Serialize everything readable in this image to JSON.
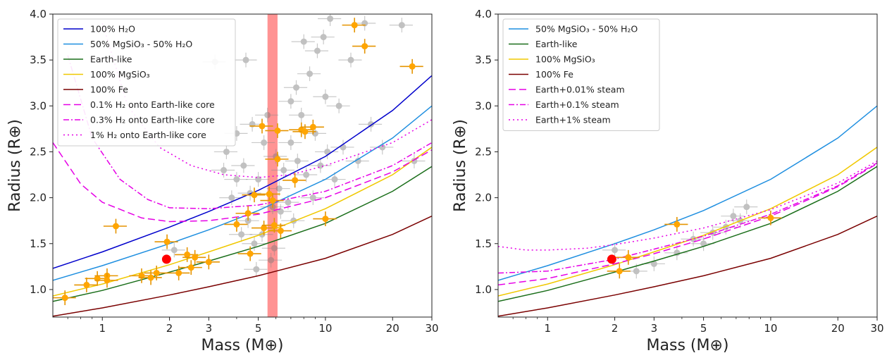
{
  "chart_data": [
    {
      "type": "scatter",
      "panel": "left",
      "xlabel": "Mass (M⊕)",
      "ylabel": "Radius (R⊕)",
      "xscale": "log",
      "xlim": [
        0.6,
        30
      ],
      "ylim": [
        0.7,
        4.0
      ],
      "xticks": [
        1,
        2,
        3,
        5,
        10,
        20,
        30
      ],
      "yticks": [
        1.0,
        1.5,
        2.0,
        2.5,
        3.0,
        3.5,
        4.0
      ],
      "legend_position": "top-left",
      "band": {
        "x_range": [
          5.5,
          6.1
        ],
        "color": "#ff8080"
      },
      "series": [
        {
          "name": "100% H₂O",
          "style": "solid",
          "color": "#0000cc",
          "x": [
            0.6,
            1,
            2,
            3,
            5,
            10,
            20,
            30
          ],
          "y": [
            1.23,
            1.41,
            1.68,
            1.85,
            2.08,
            2.45,
            2.95,
            3.33
          ]
        },
        {
          "name": "50% MgSiO₃ - 50% H₂O",
          "style": "solid",
          "color": "#1f8fe0",
          "x": [
            0.6,
            1,
            2,
            3,
            5,
            10,
            20,
            30
          ],
          "y": [
            1.1,
            1.26,
            1.5,
            1.65,
            1.86,
            2.2,
            2.65,
            3.0
          ]
        },
        {
          "name": "Earth-like",
          "style": "solid",
          "color": "#1a6e1a",
          "x": [
            0.6,
            1,
            2,
            3,
            5,
            10,
            20,
            30
          ],
          "y": [
            0.87,
            0.99,
            1.19,
            1.31,
            1.47,
            1.72,
            2.07,
            2.34
          ]
        },
        {
          "name": "100% MgSiO₃",
          "style": "solid",
          "color": "#f0c800",
          "x": [
            0.6,
            1,
            2,
            3,
            5,
            10,
            20,
            30
          ],
          "y": [
            0.93,
            1.06,
            1.27,
            1.41,
            1.59,
            1.88,
            2.25,
            2.55
          ]
        },
        {
          "name": "100% Fe",
          "style": "solid",
          "color": "#7a0000",
          "x": [
            0.6,
            1,
            2,
            3,
            5,
            10,
            20,
            30
          ],
          "y": [
            0.71,
            0.8,
            0.94,
            1.03,
            1.15,
            1.34,
            1.6,
            1.8
          ]
        },
        {
          "name": "0.1% H₂ onto Earth-like core",
          "style": "dashed",
          "color": "#e600e6",
          "x": [
            0.6,
            0.8,
            1,
            1.5,
            2,
            3,
            5,
            10,
            20,
            30
          ],
          "y": [
            2.6,
            2.15,
            1.95,
            1.78,
            1.74,
            1.75,
            1.82,
            2.0,
            2.28,
            2.52
          ]
        },
        {
          "name": "0.3% H₂ onto Earth-like core",
          "style": "dashdot",
          "color": "#e600e6",
          "x": [
            0.7,
            0.9,
            1.2,
            1.6,
            2,
            3,
            5,
            10,
            20,
            30
          ],
          "y": [
            3.55,
            2.65,
            2.2,
            1.98,
            1.89,
            1.88,
            1.92,
            2.07,
            2.35,
            2.6
          ]
        },
        {
          "name": "1% H₂ onto Earth-like core",
          "style": "dotted",
          "color": "#e600e6",
          "x": [
            1.0,
            1.3,
            1.8,
            2.5,
            3.5,
            5,
            7,
            10,
            20,
            30
          ],
          "y": [
            3.9,
            3.0,
            2.55,
            2.35,
            2.25,
            2.22,
            2.25,
            2.35,
            2.6,
            2.85
          ]
        }
      ],
      "points_gray": [
        {
          "x": 2.1,
          "y": 1.43
        },
        {
          "x": 3.0,
          "y": 1.3
        },
        {
          "x": 3.5,
          "y": 2.3
        },
        {
          "x": 3.6,
          "y": 2.5
        },
        {
          "x": 3.8,
          "y": 2.0
        },
        {
          "x": 4.0,
          "y": 2.2
        },
        {
          "x": 4.0,
          "y": 2.7
        },
        {
          "x": 4.2,
          "y": 1.6
        },
        {
          "x": 4.3,
          "y": 2.35
        },
        {
          "x": 4.5,
          "y": 1.75
        },
        {
          "x": 4.6,
          "y": 2.05
        },
        {
          "x": 4.7,
          "y": 2.8
        },
        {
          "x": 4.8,
          "y": 1.5
        },
        {
          "x": 5.0,
          "y": 2.2
        },
        {
          "x": 5.2,
          "y": 1.6
        },
        {
          "x": 5.3,
          "y": 2.6
        },
        {
          "x": 5.5,
          "y": 2.9
        },
        {
          "x": 5.7,
          "y": 1.32
        },
        {
          "x": 5.8,
          "y": 1.9
        },
        {
          "x": 6.0,
          "y": 2.45
        },
        {
          "x": 6.2,
          "y": 2.1
        },
        {
          "x": 6.3,
          "y": 1.85
        },
        {
          "x": 6.5,
          "y": 2.3
        },
        {
          "x": 6.8,
          "y": 1.95
        },
        {
          "x": 7.0,
          "y": 2.6
        },
        {
          "x": 7.0,
          "y": 3.05
        },
        {
          "x": 7.2,
          "y": 1.75
        },
        {
          "x": 7.4,
          "y": 3.2
        },
        {
          "x": 7.5,
          "y": 2.4
        },
        {
          "x": 7.8,
          "y": 2.9
        },
        {
          "x": 8.0,
          "y": 3.7
        },
        {
          "x": 8.2,
          "y": 2.25
        },
        {
          "x": 8.5,
          "y": 3.35
        },
        {
          "x": 8.8,
          "y": 2.0
        },
        {
          "x": 9.0,
          "y": 2.7
        },
        {
          "x": 9.2,
          "y": 3.6
        },
        {
          "x": 9.5,
          "y": 2.35
        },
        {
          "x": 9.8,
          "y": 3.75
        },
        {
          "x": 10.0,
          "y": 3.1
        },
        {
          "x": 10.2,
          "y": 2.5
        },
        {
          "x": 10.5,
          "y": 3.95
        },
        {
          "x": 11.0,
          "y": 2.2
        },
        {
          "x": 11.5,
          "y": 3.0
        },
        {
          "x": 12.0,
          "y": 2.55
        },
        {
          "x": 13.0,
          "y": 3.5
        },
        {
          "x": 14.0,
          "y": 2.4
        },
        {
          "x": 15.0,
          "y": 3.9
        },
        {
          "x": 16.0,
          "y": 2.8
        },
        {
          "x": 18.0,
          "y": 2.55
        },
        {
          "x": 22.0,
          "y": 3.88
        },
        {
          "x": 25.0,
          "y": 2.4
        },
        {
          "x": 4.4,
          "y": 3.5
        },
        {
          "x": 3.2,
          "y": 3.48
        },
        {
          "x": 5.9,
          "y": 1.45
        },
        {
          "x": 4.9,
          "y": 1.22
        }
      ],
      "points_orange": [
        {
          "x": 0.68,
          "y": 0.91
        },
        {
          "x": 0.85,
          "y": 1.05
        },
        {
          "x": 0.95,
          "y": 1.12
        },
        {
          "x": 1.05,
          "y": 1.15
        },
        {
          "x": 1.05,
          "y": 1.1
        },
        {
          "x": 1.15,
          "y": 1.69
        },
        {
          "x": 1.5,
          "y": 1.15
        },
        {
          "x": 1.65,
          "y": 1.13
        },
        {
          "x": 1.75,
          "y": 1.18
        },
        {
          "x": 1.95,
          "y": 1.52
        },
        {
          "x": 2.2,
          "y": 1.18
        },
        {
          "x": 2.4,
          "y": 1.38
        },
        {
          "x": 2.5,
          "y": 1.24
        },
        {
          "x": 2.6,
          "y": 1.35
        },
        {
          "x": 3.0,
          "y": 1.3
        },
        {
          "x": 4.0,
          "y": 1.71
        },
        {
          "x": 4.5,
          "y": 1.83
        },
        {
          "x": 4.6,
          "y": 1.39
        },
        {
          "x": 4.8,
          "y": 2.03
        },
        {
          "x": 5.2,
          "y": 2.78
        },
        {
          "x": 5.3,
          "y": 1.67
        },
        {
          "x": 5.6,
          "y": 2.04
        },
        {
          "x": 5.8,
          "y": 1.97
        },
        {
          "x": 5.9,
          "y": 1.7
        },
        {
          "x": 6.1,
          "y": 2.73
        },
        {
          "x": 6.3,
          "y": 1.64
        },
        {
          "x": 6.1,
          "y": 2.42
        },
        {
          "x": 7.3,
          "y": 2.19
        },
        {
          "x": 7.8,
          "y": 2.74
        },
        {
          "x": 8.1,
          "y": 2.72
        },
        {
          "x": 8.8,
          "y": 2.77
        },
        {
          "x": 10.0,
          "y": 1.77
        },
        {
          "x": 13.5,
          "y": 3.88
        },
        {
          "x": 15.0,
          "y": 3.65
        },
        {
          "x": 24.5,
          "y": 3.43
        }
      ],
      "highlight": {
        "x": 1.94,
        "y": 1.33,
        "color": "#ff0000"
      }
    },
    {
      "type": "scatter",
      "panel": "right",
      "xlabel": "Mass (M⊕)",
      "ylabel": "Radius (R⊕)",
      "xscale": "log",
      "xlim": [
        0.6,
        30
      ],
      "ylim": [
        0.7,
        4.0
      ],
      "xticks": [
        1,
        2,
        3,
        5,
        10,
        20,
        30
      ],
      "yticks": [
        1.0,
        1.5,
        2.0,
        2.5,
        3.0,
        3.5,
        4.0
      ],
      "legend_position": "top-left",
      "series": [
        {
          "name": "50% MgSiO₃ - 50% H₂O",
          "style": "solid",
          "color": "#1f8fe0",
          "x": [
            0.6,
            1,
            2,
            3,
            5,
            10,
            20,
            30
          ],
          "y": [
            1.1,
            1.26,
            1.5,
            1.65,
            1.86,
            2.2,
            2.65,
            3.0
          ]
        },
        {
          "name": "Earth-like",
          "style": "solid",
          "color": "#1a6e1a",
          "x": [
            0.6,
            1,
            2,
            3,
            5,
            10,
            20,
            30
          ],
          "y": [
            0.87,
            0.99,
            1.19,
            1.31,
            1.47,
            1.72,
            2.07,
            2.34
          ]
        },
        {
          "name": "100% MgSiO₃",
          "style": "solid",
          "color": "#f0c800",
          "x": [
            0.6,
            1,
            2,
            3,
            5,
            10,
            20,
            30
          ],
          "y": [
            0.93,
            1.06,
            1.27,
            1.41,
            1.59,
            1.88,
            2.25,
            2.55
          ]
        },
        {
          "name": "100% Fe",
          "style": "solid",
          "color": "#7a0000",
          "x": [
            0.6,
            1,
            2,
            3,
            5,
            10,
            20,
            30
          ],
          "y": [
            0.71,
            0.8,
            0.94,
            1.03,
            1.15,
            1.34,
            1.6,
            1.8
          ]
        },
        {
          "name": "Earth+0.01% steam",
          "style": "dashed",
          "color": "#e600e6",
          "x": [
            0.6,
            1,
            2,
            3,
            5,
            10,
            20,
            30
          ],
          "y": [
            1.05,
            1.12,
            1.28,
            1.39,
            1.55,
            1.8,
            2.12,
            2.37
          ]
        },
        {
          "name": "Earth+0.1% steam",
          "style": "dashdot",
          "color": "#e600e6",
          "x": [
            0.6,
            1,
            2,
            3,
            5,
            10,
            20,
            30
          ],
          "y": [
            1.18,
            1.2,
            1.33,
            1.44,
            1.58,
            1.82,
            2.13,
            2.38
          ]
        },
        {
          "name": "Earth+1% steam",
          "style": "dotted",
          "color": "#e600e6",
          "x": [
            0.6,
            0.8,
            1,
            1.5,
            2,
            3,
            5,
            10,
            20,
            30
          ],
          "y": [
            1.47,
            1.43,
            1.43,
            1.45,
            1.49,
            1.56,
            1.67,
            1.87,
            2.16,
            2.4
          ]
        }
      ],
      "points_gray": [
        {
          "x": 2.0,
          "y": 1.43
        },
        {
          "x": 2.5,
          "y": 1.2
        },
        {
          "x": 3.0,
          "y": 1.28
        },
        {
          "x": 3.8,
          "y": 1.4
        },
        {
          "x": 4.5,
          "y": 1.55
        },
        {
          "x": 5.0,
          "y": 1.5
        },
        {
          "x": 5.5,
          "y": 1.62
        },
        {
          "x": 6.3,
          "y": 1.68
        },
        {
          "x": 6.8,
          "y": 1.8
        },
        {
          "x": 7.3,
          "y": 1.75
        },
        {
          "x": 7.8,
          "y": 1.9
        }
      ],
      "points_orange": [
        {
          "x": 2.1,
          "y": 1.2
        },
        {
          "x": 2.3,
          "y": 1.35
        },
        {
          "x": 3.8,
          "y": 1.71
        },
        {
          "x": 10.0,
          "y": 1.78
        }
      ],
      "highlight": {
        "x": 1.94,
        "y": 1.33,
        "color": "#ff0000"
      }
    }
  ]
}
